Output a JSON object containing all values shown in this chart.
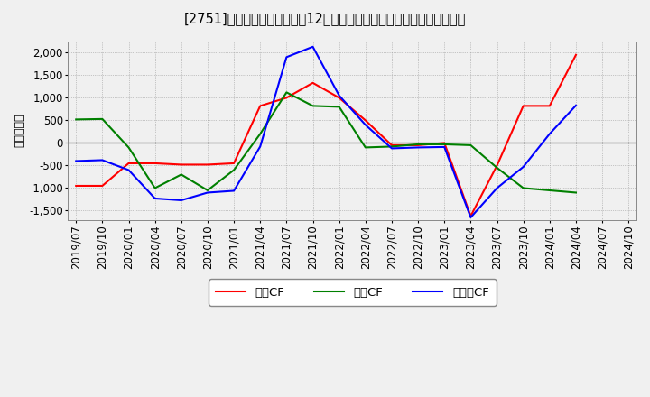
{
  "title": "[2751]　キャッシュフローの12か月移動合計の対前年同期増減額の推移",
  "ylabel": "（百万円）",
  "x_labels": [
    "2019/07",
    "2019/10",
    "2020/01",
    "2020/04",
    "2020/07",
    "2020/10",
    "2021/01",
    "2021/04",
    "2021/07",
    "2021/10",
    "2022/01",
    "2022/04",
    "2022/07",
    "2022/10",
    "2023/01",
    "2023/04",
    "2023/07",
    "2023/10",
    "2024/01",
    "2024/04",
    "2024/07",
    "2024/10"
  ],
  "operating_cf": [
    -950,
    -950,
    -450,
    -450,
    -480,
    -480,
    -450,
    820,
    1000,
    1330,
    1000,
    500,
    -50,
    -50,
    0,
    -1620,
    -500,
    820,
    820,
    1950,
    null,
    null
  ],
  "investing_cf": [
    520,
    530,
    -100,
    -1000,
    -700,
    -1050,
    -600,
    200,
    1120,
    820,
    800,
    -100,
    -80,
    -30,
    -30,
    -50,
    -550,
    -1000,
    -1050,
    -1100,
    null,
    null
  ],
  "free_cf": [
    -400,
    -380,
    -600,
    -1230,
    -1270,
    -1100,
    -1060,
    -80,
    1900,
    2130,
    1050,
    400,
    -120,
    -100,
    -90,
    -1650,
    -1000,
    -530,
    200,
    830,
    null,
    null
  ],
  "colors": {
    "operating": "#ff0000",
    "investing": "#008000",
    "free": "#0000ff"
  },
  "ylim": [
    -1700,
    2250
  ],
  "yticks": [
    -1500,
    -1000,
    -500,
    0,
    500,
    1000,
    1500,
    2000
  ],
  "legend_labels": [
    "営業CF",
    "投資CF",
    "フリーCF"
  ],
  "background_color": "#f0f0f0",
  "plot_bg_color": "#f0f0f0",
  "grid_color": "#999999"
}
